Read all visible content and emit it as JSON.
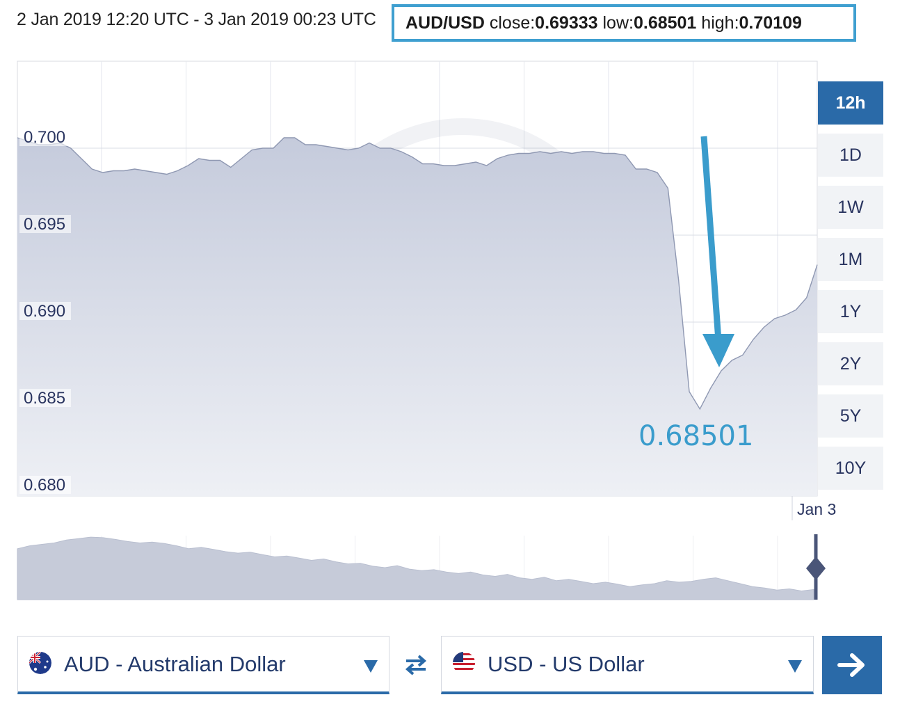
{
  "header": {
    "range": "2 Jan 2019 12:20 UTC - 3 Jan 2019 00:23 UTC",
    "pair": "AUD/USD",
    "close_label": "close:",
    "close_value": "0.69333",
    "low_label": "low:",
    "low_value": "0.68501",
    "high_label": "high:",
    "high_value": "0.70109"
  },
  "timeframes": [
    "12h",
    "1D",
    "1W",
    "1M",
    "1Y",
    "2Y",
    "5Y",
    "10Y"
  ],
  "active_timeframe": "12h",
  "annotation": {
    "value": "0.68501",
    "color": "#3a9ccc"
  },
  "converter": {
    "from": "AUD - Australian Dollar",
    "to": "USD - US Dollar"
  },
  "colors": {
    "accent": "#2a6aa8",
    "area": "#c9cfdf",
    "annotation": "#3a9ccc"
  },
  "chart_data": {
    "type": "area",
    "title": "",
    "xlabel": "",
    "ylabel": "",
    "ylim": [
      0.68,
      0.705
    ],
    "yticks": [
      "0.700",
      "0.695",
      "0.690",
      "0.685",
      "0.680"
    ],
    "xticks": [
      "Jan 3"
    ],
    "grid": true,
    "series": [
      {
        "values": [
          0.7006,
          0.7004,
          0.7002,
          0.7002,
          0.7003,
          0.7,
          0.6994,
          0.6988,
          0.6986,
          0.6987,
          0.6987,
          0.6988,
          0.6987,
          0.6986,
          0.6985,
          0.6987,
          0.699,
          0.6994,
          0.6993,
          0.6993,
          0.6989,
          0.6994,
          0.6999,
          0.7,
          0.7,
          0.7006,
          0.7006,
          0.7002,
          0.7002,
          0.7001,
          0.7,
          0.6999,
          0.7,
          0.7003,
          0.7,
          0.7,
          0.6998,
          0.6995,
          0.6991,
          0.6991,
          0.699,
          0.699,
          0.6991,
          0.6992,
          0.699,
          0.6994,
          0.6996,
          0.6997,
          0.6997,
          0.6998,
          0.6997,
          0.6998,
          0.6997,
          0.6998,
          0.6998,
          0.6997,
          0.6997,
          0.6996,
          0.6988,
          0.6988,
          0.6986,
          0.6977,
          0.6924,
          0.686,
          0.685,
          0.6862,
          0.6872,
          0.6878,
          0.6881,
          0.689,
          0.6897,
          0.6902,
          0.6904,
          0.6907,
          0.6914,
          0.6933
        ]
      }
    ],
    "overview_series": [
      0.668,
      0.669,
      0.6695,
      0.67,
      0.671,
      0.6715,
      0.672,
      0.6718,
      0.6712,
      0.6705,
      0.67,
      0.6703,
      0.6698,
      0.669,
      0.668,
      0.6685,
      0.6678,
      0.667,
      0.6665,
      0.6668,
      0.666,
      0.6652,
      0.6655,
      0.6648,
      0.664,
      0.6645,
      0.6635,
      0.6628,
      0.663,
      0.662,
      0.6615,
      0.6622,
      0.661,
      0.6605,
      0.6608,
      0.66,
      0.6595,
      0.66,
      0.659,
      0.6585,
      0.6592,
      0.658,
      0.6575,
      0.6582,
      0.657,
      0.6575,
      0.6568,
      0.656,
      0.6565,
      0.6558,
      0.655,
      0.6556,
      0.656,
      0.657,
      0.6565,
      0.6568,
      0.6575,
      0.658,
      0.657,
      0.656,
      0.655,
      0.6545,
      0.6538,
      0.6542,
      0.6535,
      0.654
    ]
  }
}
